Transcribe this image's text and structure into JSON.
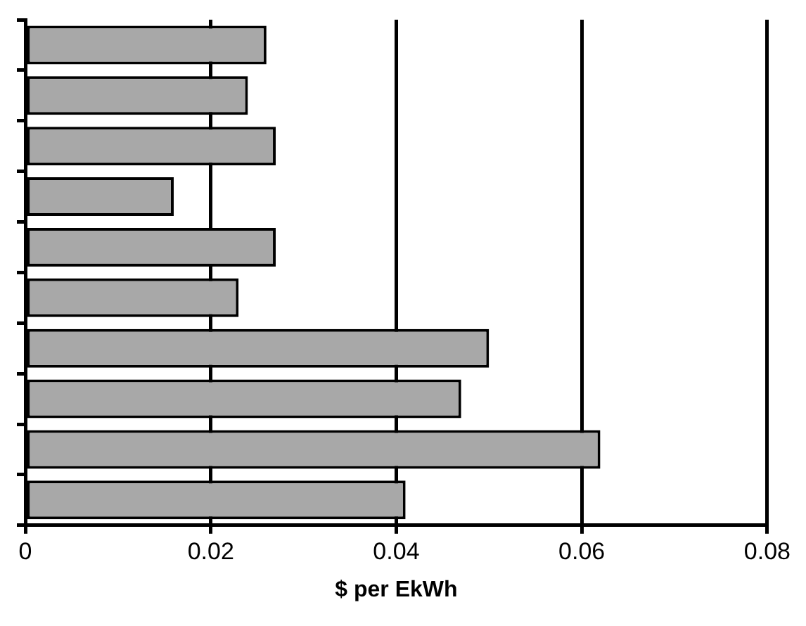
{
  "chart_data": {
    "type": "bar",
    "orientation": "horizontal",
    "xlabel": "$ per EkWh",
    "categories": [
      null,
      null,
      null,
      null,
      null,
      null,
      null,
      null,
      null,
      null
    ],
    "values": [
      0.026,
      0.024,
      0.027,
      0.016,
      0.027,
      0.023,
      0.05,
      0.047,
      0.062,
      0.041
    ],
    "color": "#a8a8a8",
    "xlim": [
      0,
      0.08
    ],
    "xticks": [
      0,
      0.02,
      0.04,
      0.06,
      0.08
    ],
    "grid": "x"
  }
}
